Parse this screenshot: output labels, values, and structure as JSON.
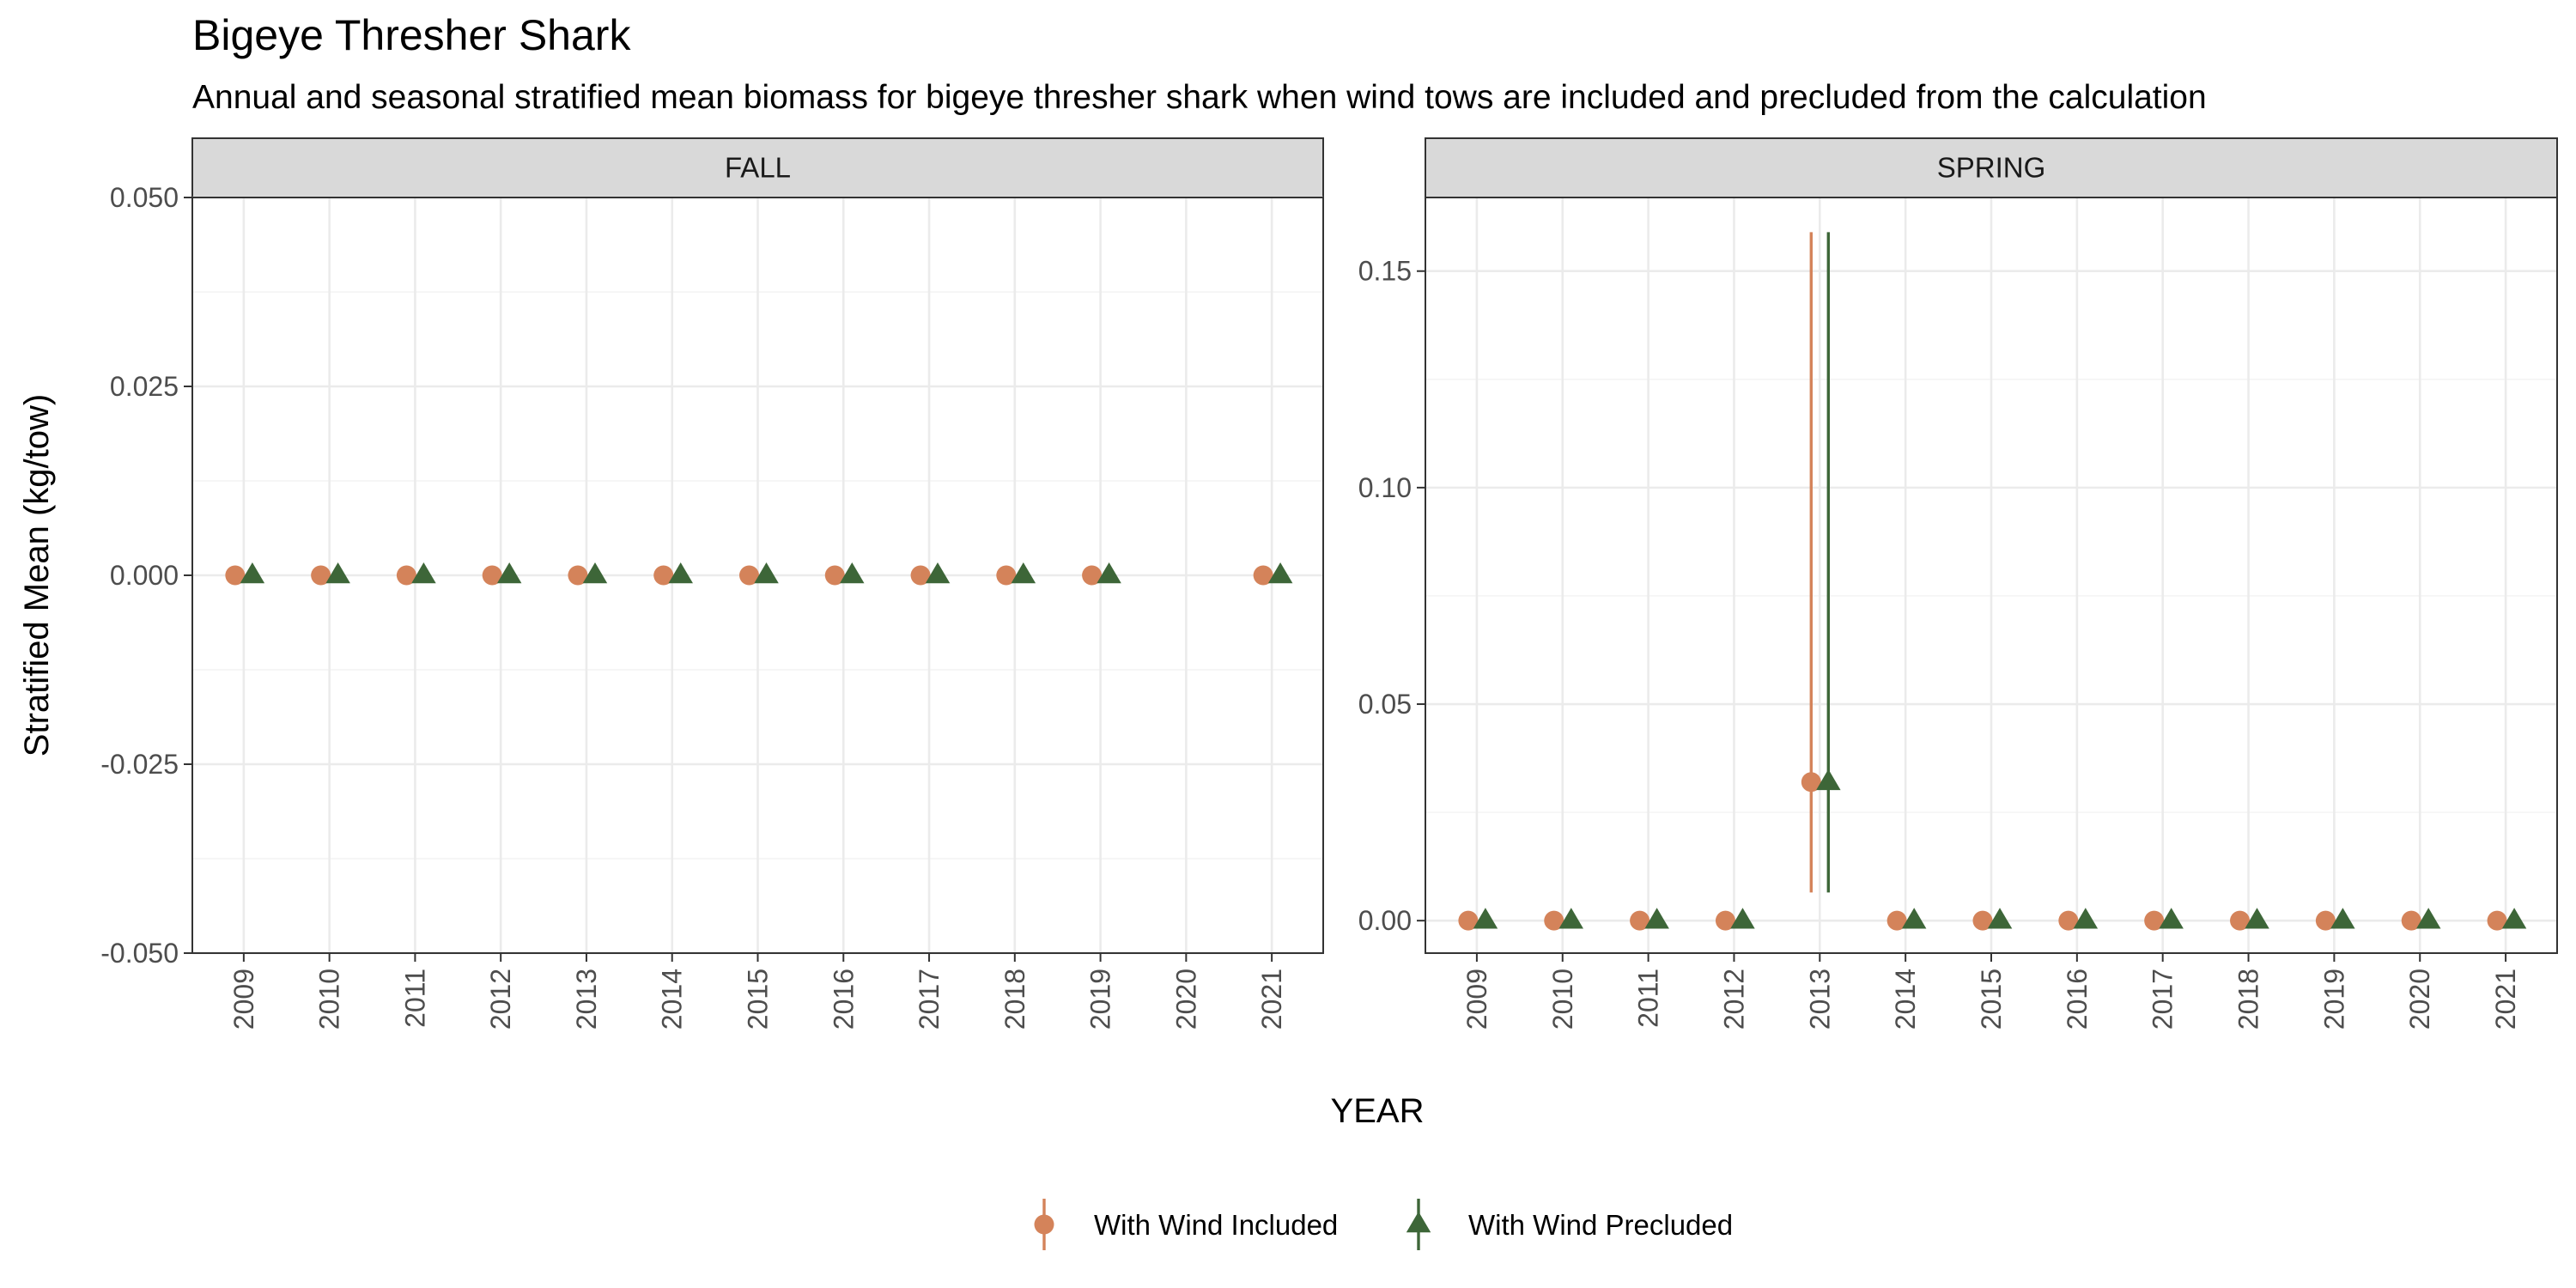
{
  "chart_data": {
    "type": "scatter",
    "title": "Bigeye Thresher Shark",
    "subtitle": "Annual and seasonal stratified mean biomass for bigeye thresher shark when wind tows are included and precluded from the calculation",
    "xlabel": "YEAR",
    "ylabel": "Stratified Mean (kg/tow)",
    "x_ticks": [
      "2009",
      "2010",
      "2011",
      "2012",
      "2013",
      "2014",
      "2015",
      "2016",
      "2017",
      "2018",
      "2019",
      "2020",
      "2021"
    ],
    "grid": true,
    "legend_position": "bottom",
    "series_styles": [
      {
        "name": "With Wind Included",
        "marker": "circle",
        "color": "#d4835a"
      },
      {
        "name": "With Wind Precluded",
        "marker": "triangle",
        "color": "#3d6638"
      }
    ],
    "panels": [
      {
        "label": "FALL",
        "ylim": [
          -0.05,
          0.05
        ],
        "y_ticks": [
          -0.05,
          -0.025,
          0,
          0.025,
          0.05
        ],
        "y_tick_labels": [
          "-0.050",
          "-0.025",
          "0.000",
          "0.025",
          "0.050"
        ],
        "series": [
          {
            "name": "With Wind Included",
            "points": [
              {
                "x": "2009",
                "y": 0
              },
              {
                "x": "2010",
                "y": 0
              },
              {
                "x": "2011",
                "y": 0
              },
              {
                "x": "2012",
                "y": 0
              },
              {
                "x": "2013",
                "y": 0
              },
              {
                "x": "2014",
                "y": 0
              },
              {
                "x": "2015",
                "y": 0
              },
              {
                "x": "2016",
                "y": 0
              },
              {
                "x": "2017",
                "y": 0
              },
              {
                "x": "2018",
                "y": 0
              },
              {
                "x": "2019",
                "y": 0
              },
              {
                "x": "2021",
                "y": 0
              }
            ]
          },
          {
            "name": "With Wind Precluded",
            "points": [
              {
                "x": "2009",
                "y": 0
              },
              {
                "x": "2010",
                "y": 0
              },
              {
                "x": "2011",
                "y": 0
              },
              {
                "x": "2012",
                "y": 0
              },
              {
                "x": "2013",
                "y": 0
              },
              {
                "x": "2014",
                "y": 0
              },
              {
                "x": "2015",
                "y": 0
              },
              {
                "x": "2016",
                "y": 0
              },
              {
                "x": "2017",
                "y": 0
              },
              {
                "x": "2018",
                "y": 0
              },
              {
                "x": "2019",
                "y": 0
              },
              {
                "x": "2021",
                "y": 0
              }
            ]
          }
        ]
      },
      {
        "label": "SPRING",
        "ylim": [
          -0.0075,
          0.167
        ],
        "y_ticks": [
          0,
          0.05,
          0.1,
          0.15
        ],
        "y_tick_labels": [
          "0.00",
          "0.05",
          "0.10",
          "0.15"
        ],
        "series": [
          {
            "name": "With Wind Included",
            "points": [
              {
                "x": "2009",
                "y": 0
              },
              {
                "x": "2010",
                "y": 0
              },
              {
                "x": "2011",
                "y": 0
              },
              {
                "x": "2012",
                "y": 0
              },
              {
                "x": "2013",
                "y": 0.032,
                "ymin": 0.0065,
                "ymax": 0.159
              },
              {
                "x": "2014",
                "y": 0
              },
              {
                "x": "2015",
                "y": 0
              },
              {
                "x": "2016",
                "y": 0
              },
              {
                "x": "2017",
                "y": 0
              },
              {
                "x": "2018",
                "y": 0
              },
              {
                "x": "2019",
                "y": 0
              },
              {
                "x": "2020",
                "y": 0
              },
              {
                "x": "2021",
                "y": 0
              }
            ]
          },
          {
            "name": "With Wind Precluded",
            "points": [
              {
                "x": "2009",
                "y": 0
              },
              {
                "x": "2010",
                "y": 0
              },
              {
                "x": "2011",
                "y": 0
              },
              {
                "x": "2012",
                "y": 0
              },
              {
                "x": "2013",
                "y": 0.032,
                "ymin": 0.0065,
                "ymax": 0.159
              },
              {
                "x": "2014",
                "y": 0
              },
              {
                "x": "2015",
                "y": 0
              },
              {
                "x": "2016",
                "y": 0
              },
              {
                "x": "2017",
                "y": 0
              },
              {
                "x": "2018",
                "y": 0
              },
              {
                "x": "2019",
                "y": 0
              },
              {
                "x": "2020",
                "y": 0
              },
              {
                "x": "2021",
                "y": 0
              }
            ]
          }
        ]
      }
    ]
  }
}
